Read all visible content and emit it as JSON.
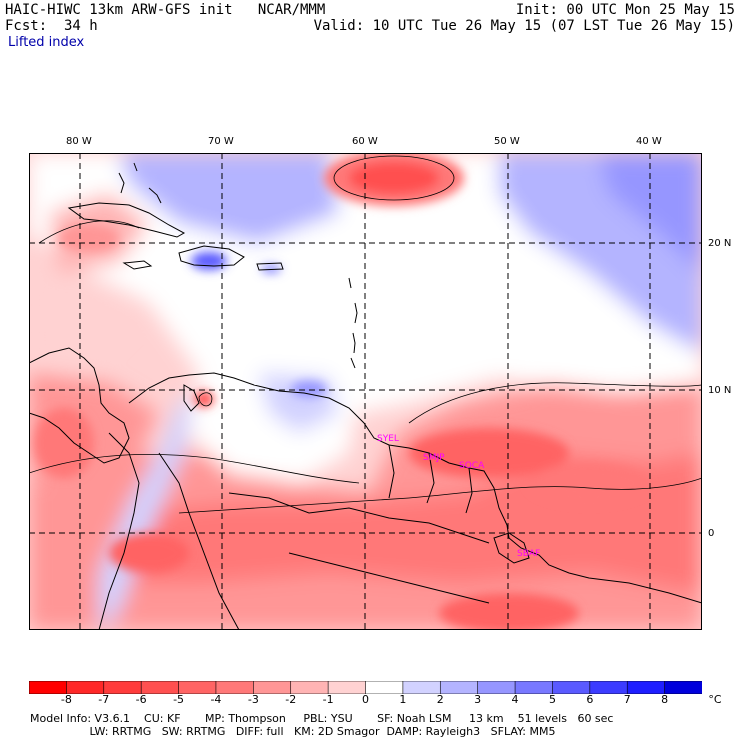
{
  "header": {
    "model_title": "HAIC-HIWC 13km ARW-GFS init   NCAR/MMM",
    "init_time": "Init: 00 UTC Mon 25 May 15",
    "forecast_label": "Fcst:",
    "forecast_hours": "34 h",
    "valid_time": "Valid: 10 UTC Tue 26 May 15 (07 LST Tue 26 May 15)",
    "field_name": "Lifted index"
  },
  "map": {
    "lon_labels": [
      "80 W",
      "70 W",
      "60 W",
      "50 W",
      "40 W"
    ],
    "lat_labels": [
      "20 N",
      "10 N",
      "0"
    ],
    "stations": [
      "SYEL",
      "SMJP",
      "SOCA",
      "SBAF"
    ],
    "colors": {
      "station_label": "#ff00ff",
      "coast": "#000000",
      "grid": "#000000"
    }
  },
  "colorbar": {
    "ticks": [
      "-8",
      "-7",
      "-6",
      "-5",
      "-4",
      "-3",
      "-2",
      "-1",
      "0",
      "1",
      "2",
      "3",
      "4",
      "5",
      "6",
      "7",
      "8"
    ],
    "unit": "°C",
    "colors": [
      "#ff0000",
      "#ff2828",
      "#ff3c3c",
      "#ff5050",
      "#ff6464",
      "#ff7878",
      "#ff9696",
      "#ffb4b4",
      "#ffd2d2",
      "#ffffff",
      "#d2d2ff",
      "#b4b4ff",
      "#9696ff",
      "#7878ff",
      "#5a5aff",
      "#3c3cff",
      "#1e1eff",
      "#0000dc"
    ]
  },
  "footer": {
    "line1": "Model Info: V3.6.1    CU: KF       MP: Thompson     PBL: YSU       SF: Noah LSM     13 km    51 levels   60 sec",
    "line2": "                 LW: RRTMG   SW: RRTMG   DIFF: full   KM: 2D Smagor  DAMP: Rayleigh3   SFLAY: MM5"
  }
}
